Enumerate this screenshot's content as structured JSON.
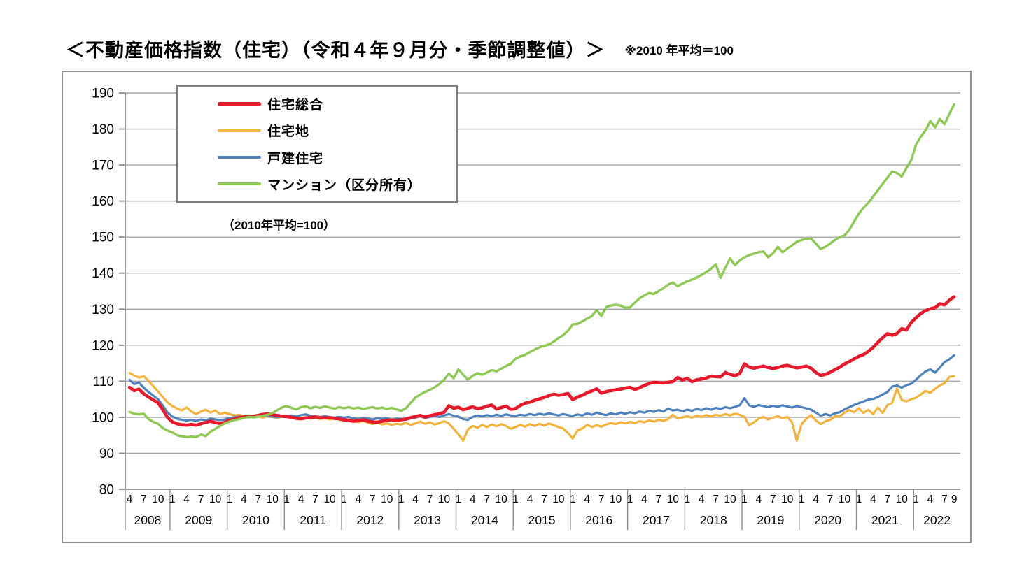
{
  "title": {
    "main": "＜不動産価格指数（住宅）（令和４年９月分・季節調整値）＞",
    "note": "※2010 年平均＝100"
  },
  "legend": {
    "note": "（2010年平均=100）",
    "items": [
      {
        "key": "total",
        "label": "住宅総合",
        "color": "#e8192d",
        "thickness": 6
      },
      {
        "key": "land",
        "label": "住宅地",
        "color": "#f2b33d",
        "thickness": 4
      },
      {
        "key": "detached",
        "label": "戸建住宅",
        "color": "#4f81bd",
        "thickness": 4
      },
      {
        "key": "mansion",
        "label": "マンション（区分所有）",
        "color": "#8fc855",
        "thickness": 4
      }
    ]
  },
  "chart_data": {
    "type": "line",
    "title": "不動産価格指数（住宅）季節調整値",
    "x_frequency": "monthly",
    "x_start": "2008-04",
    "x_end": "2022-09",
    "ylim": [
      80,
      190
    ],
    "y_ticks": [
      80,
      90,
      100,
      110,
      120,
      130,
      140,
      150,
      160,
      170,
      180,
      190
    ],
    "grid": "horizontal",
    "legend_position": "top-left-box",
    "x_axis": {
      "years": [
        {
          "year": "2008",
          "months": [
            4,
            7,
            10
          ]
        },
        {
          "year": "2009",
          "months": [
            1,
            4,
            7,
            10
          ]
        },
        {
          "year": "2010",
          "months": [
            1,
            4,
            7,
            10
          ]
        },
        {
          "year": "2011",
          "months": [
            1,
            4,
            7,
            10
          ]
        },
        {
          "year": "2012",
          "months": [
            1,
            4,
            7,
            10
          ]
        },
        {
          "year": "2013",
          "months": [
            1,
            4,
            7,
            10
          ]
        },
        {
          "year": "2014",
          "months": [
            1,
            4,
            7,
            10
          ]
        },
        {
          "year": "2015",
          "months": [
            1,
            4,
            7,
            10
          ]
        },
        {
          "year": "2016",
          "months": [
            1,
            4,
            7,
            10
          ]
        },
        {
          "year": "2017",
          "months": [
            1,
            4,
            7,
            10
          ]
        },
        {
          "year": "2018",
          "months": [
            1,
            4,
            7,
            10
          ]
        },
        {
          "year": "2019",
          "months": [
            1,
            4,
            7,
            10
          ]
        },
        {
          "year": "2020",
          "months": [
            1,
            4,
            7,
            10
          ]
        },
        {
          "year": "2021",
          "months": [
            1,
            4,
            7,
            10
          ]
        },
        {
          "year": "2022",
          "months": [
            1,
            4,
            7,
            9
          ]
        }
      ]
    },
    "series": [
      {
        "key": "land",
        "name": "住宅地",
        "color": "#f2b33d",
        "width": 3.2,
        "values": [
          112.3,
          111.6,
          111.0,
          111.4,
          110.1,
          108.6,
          107.1,
          105.6,
          104.1,
          103.1,
          102.4,
          101.9,
          102.7,
          101.6,
          100.9,
          101.6,
          102.1,
          101.3,
          101.9,
          100.9,
          101.3,
          100.9,
          100.5,
          100.7,
          100.3,
          100.5,
          100.1,
          100.3,
          99.9,
          100.4,
          100.1,
          99.8,
          100.2,
          100.4,
          100.0,
          100.2,
          99.8,
          100.1,
          99.6,
          99.9,
          99.5,
          99.8,
          99.4,
          99.7,
          99.3,
          99.1,
          99.4,
          98.9,
          98.6,
          99.0,
          98.5,
          98.1,
          98.5,
          98.0,
          98.3,
          97.9,
          98.2,
          98.0,
          98.4,
          97.9,
          98.3,
          98.8,
          98.2,
          98.6,
          98.0,
          98.4,
          98.9,
          98.3,
          96.8,
          95.3,
          93.5,
          96.6,
          97.6,
          97.1,
          97.9,
          97.3,
          98.0,
          97.5,
          98.1,
          97.6,
          96.8,
          97.3,
          97.9,
          97.4,
          98.1,
          97.6,
          98.2,
          97.7,
          98.3,
          97.8,
          97.3,
          96.9,
          95.6,
          94.1,
          96.4,
          96.9,
          97.9,
          97.3,
          97.8,
          97.4,
          98.0,
          98.4,
          98.1,
          98.6,
          98.3,
          98.7,
          98.4,
          98.9,
          98.6,
          99.1,
          98.8,
          99.3,
          99.0,
          99.5,
          100.7,
          99.6,
          100.0,
          100.3,
          99.9,
          100.4,
          100.1,
          100.6,
          100.2,
          100.7,
          100.4,
          100.9,
          100.5,
          101.0,
          100.7,
          100.1,
          97.8,
          98.6,
          99.6,
          100.1,
          99.4,
          99.9,
          100.3,
          99.7,
          100.1,
          98.6,
          93.5,
          98.1,
          99.6,
          100.6,
          99.1,
          98.1,
          98.9,
          99.3,
          100.3,
          100.2,
          101.3,
          102.0,
          101.4,
          102.5,
          101.2,
          102.1,
          100.9,
          102.7,
          101.2,
          103.4,
          104.0,
          108.0,
          104.8,
          104.4,
          105.0,
          105.4,
          106.3,
          107.3,
          106.8,
          107.9,
          108.8,
          109.5,
          111.2,
          111.4
        ]
      },
      {
        "key": "detached",
        "name": "戸建住宅",
        "color": "#4f81bd",
        "width": 3.2,
        "values": [
          110.4,
          109.2,
          109.6,
          108.2,
          107.0,
          106.0,
          105.0,
          103.2,
          101.3,
          100.2,
          99.6,
          99.3,
          99.1,
          99.3,
          99.0,
          99.4,
          99.2,
          99.6,
          99.4,
          99.2,
          99.4,
          99.8,
          100.0,
          100.2,
          100.1,
          100.3,
          100.4,
          100.2,
          100.5,
          100.4,
          100.2,
          100.1,
          100.2,
          100.3,
          100.5,
          100.2,
          100.6,
          100.8,
          100.4,
          100.2,
          100.1,
          100.3,
          100.1,
          99.9,
          100.1,
          99.9,
          100.1,
          99.7,
          99.5,
          99.8,
          99.6,
          99.4,
          99.7,
          99.5,
          99.8,
          99.3,
          99.6,
          99.5,
          99.3,
          99.7,
          99.9,
          100.3,
          99.8,
          100.1,
          100.4,
          100.1,
          100.5,
          100.9,
          100.4,
          100.2,
          99.5,
          99.3,
          100.1,
          100.5,
          100.2,
          100.6,
          100.3,
          100.7,
          100.4,
          100.8,
          100.5,
          100.4,
          100.7,
          100.5,
          100.9,
          100.6,
          101.0,
          100.7,
          101.1,
          100.8,
          100.5,
          100.9,
          100.6,
          100.4,
          100.8,
          100.5,
          101.1,
          100.7,
          101.3,
          100.9,
          100.6,
          101.1,
          100.8,
          101.3,
          101.0,
          101.4,
          101.1,
          101.6,
          101.3,
          101.8,
          101.5,
          102.0,
          101.6,
          102.4,
          101.9,
          102.1,
          101.7,
          102.1,
          101.8,
          102.3,
          102.0,
          102.5,
          102.1,
          102.6,
          102.3,
          102.8,
          102.5,
          102.9,
          103.3,
          105.3,
          103.3,
          102.9,
          103.4,
          103.1,
          102.8,
          103.2,
          102.9,
          103.3,
          103.0,
          102.7,
          103.1,
          102.8,
          102.5,
          102.1,
          101.3,
          100.4,
          100.9,
          100.5,
          101.1,
          101.4,
          102.2,
          102.8,
          103.4,
          103.9,
          104.4,
          104.9,
          105.1,
          105.6,
          106.3,
          107.0,
          108.5,
          108.8,
          108.2,
          108.9,
          109.3,
          110.4,
          111.7,
          112.7,
          113.3,
          112.4,
          113.8,
          115.3,
          116.1,
          117.2
        ]
      },
      {
        "key": "total",
        "name": "住宅総合",
        "color": "#e8192d",
        "width": 4.6,
        "values": [
          108.3,
          107.4,
          107.8,
          106.5,
          105.6,
          104.8,
          104.0,
          102.1,
          99.9,
          98.7,
          98.2,
          97.9,
          97.8,
          98.0,
          97.8,
          98.2,
          98.6,
          98.9,
          98.5,
          98.3,
          98.6,
          99.2,
          99.5,
          99.9,
          100.1,
          100.2,
          100.3,
          100.5,
          100.8,
          101.0,
          100.7,
          100.5,
          100.3,
          100.2,
          100.0,
          99.7,
          99.6,
          99.8,
          100.0,
          100.1,
          99.9,
          99.8,
          99.9,
          99.7,
          99.6,
          99.3,
          99.1,
          98.9,
          99.1,
          99.3,
          98.9,
          98.7,
          98.6,
          98.9,
          99.1,
          99.3,
          99.1,
          99.3,
          99.5,
          99.9,
          100.2,
          100.5,
          100.1,
          100.4,
          100.7,
          101.0,
          101.4,
          103.2,
          102.5,
          102.8,
          102.1,
          102.5,
          102.9,
          102.4,
          102.6,
          103.1,
          103.4,
          102.3,
          102.7,
          103.1,
          102.2,
          102.4,
          103.3,
          103.9,
          104.2,
          104.7,
          105.1,
          105.5,
          106.0,
          106.4,
          106.1,
          106.3,
          106.6,
          104.9,
          105.6,
          106.1,
          106.8,
          107.3,
          107.9,
          106.7,
          107.1,
          107.4,
          107.6,
          107.8,
          108.1,
          108.3,
          107.7,
          108.2,
          108.8,
          109.4,
          109.7,
          109.6,
          109.5,
          109.7,
          109.9,
          111.0,
          110.3,
          110.8,
          109.9,
          110.4,
          110.6,
          110.9,
          111.4,
          111.3,
          111.2,
          112.4,
          111.9,
          111.5,
          112.1,
          114.8,
          113.9,
          113.6,
          113.9,
          114.2,
          113.8,
          113.5,
          113.8,
          114.2,
          114.4,
          114.0,
          113.7,
          113.9,
          114.2,
          113.6,
          112.4,
          111.6,
          111.9,
          112.5,
          113.2,
          113.9,
          114.8,
          115.4,
          116.2,
          116.9,
          117.4,
          118.3,
          119.4,
          120.8,
          122.1,
          123.2,
          122.8,
          123.2,
          124.6,
          124.2,
          126.3,
          127.6,
          128.8,
          129.6,
          130.1,
          130.4,
          131.5,
          131.2,
          132.5,
          133.4
        ]
      },
      {
        "key": "mansion",
        "name": "マンション（区分所有）",
        "color": "#8fc855",
        "width": 3.4,
        "values": [
          101.5,
          101.0,
          100.8,
          101.0,
          99.5,
          98.7,
          98.2,
          97.0,
          96.3,
          95.8,
          95.0,
          94.7,
          94.5,
          94.6,
          94.5,
          95.2,
          94.8,
          96.0,
          96.8,
          97.6,
          98.3,
          98.8,
          99.2,
          99.5,
          99.8,
          100.1,
          100.0,
          100.2,
          100.4,
          100.7,
          101.2,
          102.0,
          102.7,
          103.1,
          102.6,
          102.2,
          102.8,
          103.0,
          102.5,
          102.9,
          102.6,
          103.0,
          102.7,
          102.4,
          102.8,
          102.5,
          102.8,
          102.4,
          102.7,
          102.3,
          102.6,
          102.8,
          102.4,
          102.7,
          102.3,
          102.6,
          102.2,
          101.8,
          102.5,
          104.0,
          105.5,
          106.3,
          107.0,
          107.6,
          108.3,
          109.2,
          110.4,
          112.1,
          110.8,
          113.3,
          111.8,
          110.4,
          111.5,
          112.2,
          111.8,
          112.4,
          113.1,
          112.7,
          113.5,
          114.2,
          114.8,
          116.3,
          116.9,
          117.3,
          118.1,
          118.8,
          119.4,
          119.8,
          120.2,
          121.0,
          122.0,
          122.8,
          124.0,
          125.8,
          125.9,
          126.6,
          127.4,
          128.1,
          129.7,
          128.1,
          130.6,
          131.0,
          131.2,
          131.0,
          130.4,
          130.5,
          131.8,
          133.0,
          133.8,
          134.5,
          134.2,
          135.0,
          135.8,
          136.8,
          137.4,
          136.4,
          137.1,
          137.7,
          138.2,
          138.8,
          139.5,
          140.3,
          141.2,
          142.5,
          138.7,
          141.5,
          144.1,
          142.2,
          143.5,
          144.4,
          145.0,
          145.4,
          145.8,
          146.0,
          144.4,
          145.5,
          147.3,
          145.8,
          146.8,
          147.7,
          148.7,
          149.2,
          149.5,
          149.6,
          148.2,
          146.7,
          147.3,
          148.2,
          149.2,
          150.0,
          150.5,
          152.0,
          154.3,
          156.5,
          158.2,
          159.5,
          161.3,
          163.0,
          164.8,
          166.5,
          168.2,
          167.8,
          166.8,
          169.2,
          171.3,
          175.6,
          177.9,
          179.6,
          182.2,
          180.5,
          182.8,
          181.3,
          184.2,
          186.8
        ]
      }
    ]
  }
}
